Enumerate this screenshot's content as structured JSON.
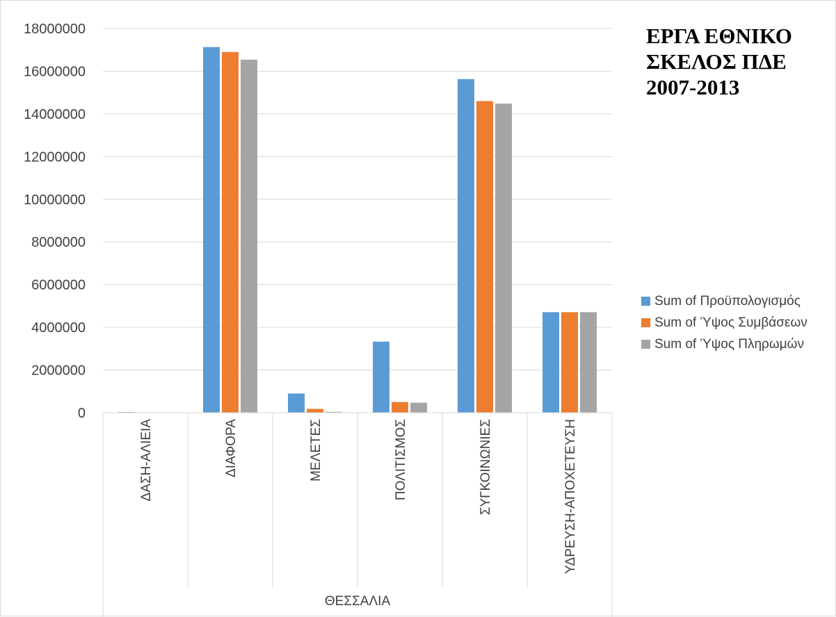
{
  "title_lines": [
    "ΕΡΓΑ ΕΘΝΙΚΟ",
    "ΣΚΕΛΟΣ ΠΔΕ",
    "2007-2013"
  ],
  "colors": {
    "series": [
      "#5b9bd5",
      "#ed7d31",
      "#a5a5a5"
    ],
    "grid": "#d9d9d9",
    "text": "#404040"
  },
  "chart_data": {
    "type": "bar",
    "title": "ΕΡΓΑ ΕΘΝΙΚΟ ΣΚΕΛΟΣ ΠΔΕ 2007-2013",
    "group_label": "ΘΕΣΣΑΛΙΑ",
    "categories": [
      "ΔΑΣΗ-ΑΛΙΕΙΑ",
      "ΔΙΑΦΟΡΑ",
      "ΜΕΛΕΤΕΣ",
      "ΠΟΛΙΤΙΣΜΟΣ",
      "ΣΥΓΚΟΙΝΩΝΙΕΣ",
      "ΥΔΡΕΥΣΗ-ΑΠΟΧΕΤΕΥΣΗ"
    ],
    "series": [
      {
        "name": "Sum of Προϋπολογισμός",
        "values": [
          20000,
          17130000,
          900000,
          3330000,
          15630000,
          4710000
        ]
      },
      {
        "name": "Sum of Ύψος Συμβάσεων",
        "values": [
          0,
          16900000,
          180000,
          500000,
          14600000,
          4710000
        ]
      },
      {
        "name": "Sum of Ύψος Πληρωμών",
        "values": [
          0,
          16540000,
          40000,
          470000,
          14480000,
          4710000
        ]
      }
    ],
    "ylim": [
      0,
      18000000
    ],
    "y_ticks": [
      "0",
      "2000000",
      "4000000",
      "6000000",
      "8000000",
      "10000000",
      "12000000",
      "14000000",
      "16000000",
      "18000000"
    ],
    "grid": true,
    "legend_position": "right"
  }
}
